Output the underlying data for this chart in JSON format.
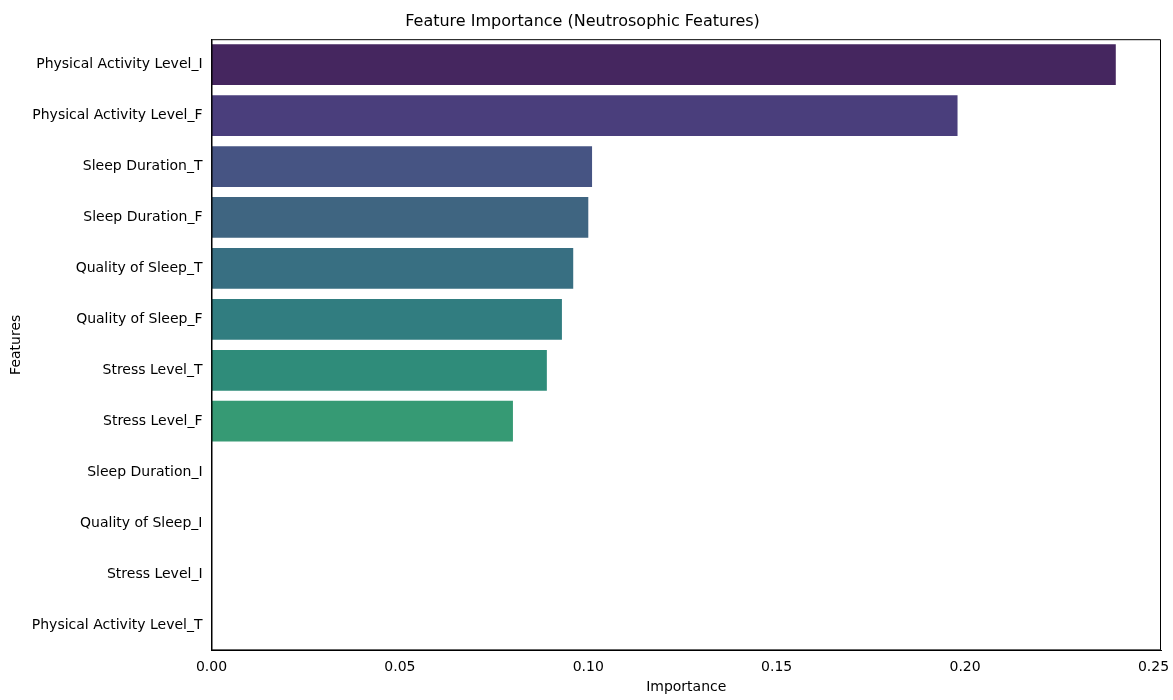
{
  "chart_data": {
    "type": "bar",
    "orientation": "horizontal",
    "title": "Feature Importance (Neutrosophic Features)",
    "xlabel": "Importance",
    "ylabel": "Features",
    "categories": [
      "Physical Activity Level_I",
      "Physical Activity Level_F",
      "Sleep Duration_T",
      "Sleep Duration_F",
      "Quality of Sleep_T",
      "Quality of Sleep_F",
      "Stress Level_T",
      "Stress Level_F",
      "Sleep Duration_I",
      "Quality of Sleep_I",
      "Stress Level_I",
      "Physical Activity Level_T"
    ],
    "values": [
      0.24,
      0.198,
      0.101,
      0.1,
      0.096,
      0.093,
      0.089,
      0.08,
      0,
      0,
      0,
      0
    ],
    "colors": [
      "#45265f",
      "#4a3e7c",
      "#465483",
      "#3f6581",
      "#386f82",
      "#317d80",
      "#2f8c7a",
      "#369a74",
      "#52a866",
      "#7bb653",
      "#a9c240",
      "#d2c83a"
    ],
    "xlim": [
      0,
      0.252
    ],
    "xticks": [
      {
        "value": 0,
        "label": "0.00"
      },
      {
        "value": 0.05,
        "label": "0.05"
      },
      {
        "value": 0.1,
        "label": "0.10"
      },
      {
        "value": 0.15,
        "label": "0.15"
      },
      {
        "value": 0.2,
        "label": "0.20"
      },
      {
        "value": 0.25,
        "label": "0.25"
      }
    ],
    "grid": false,
    "legend": false
  }
}
